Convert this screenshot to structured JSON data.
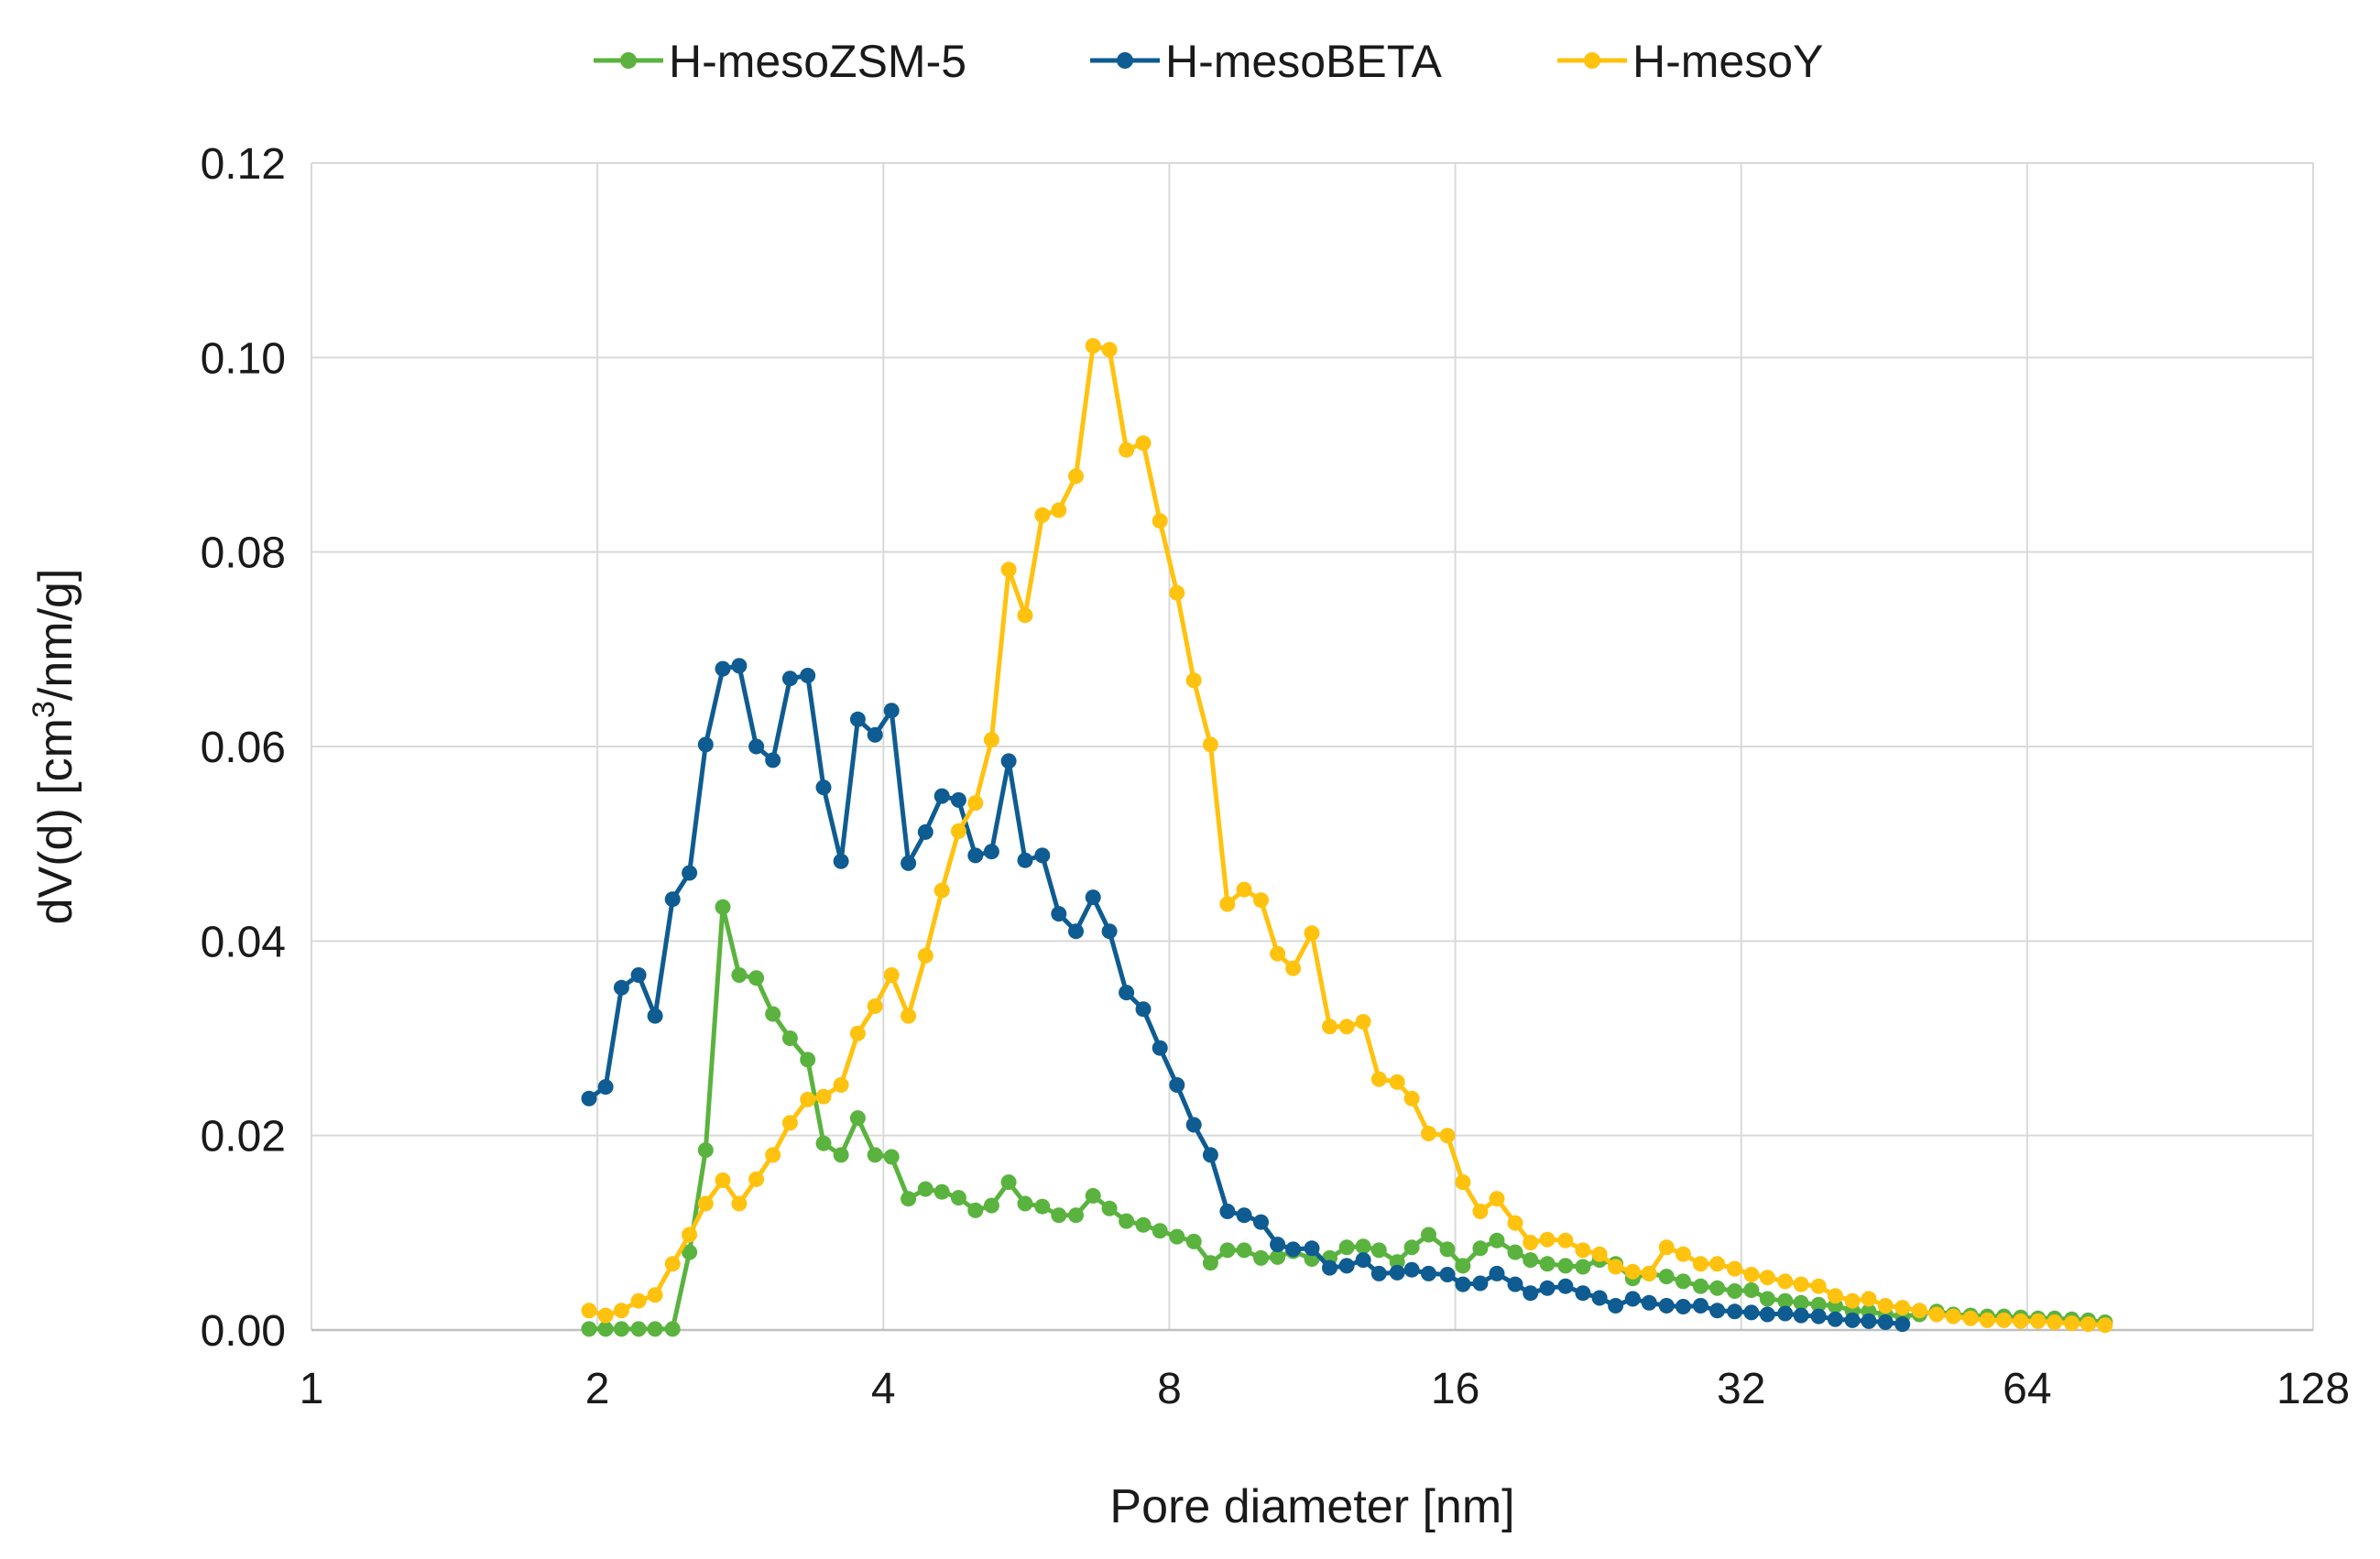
{
  "chart_data": {
    "type": "line",
    "title": "",
    "xlabel": "Pore diameter [nm]",
    "ylabel_main": "dV(d) [cm",
    "ylabel_sup": "3",
    "ylabel_tail": "/nm/g]",
    "xscale": "log2",
    "xlim": [
      1,
      128
    ],
    "ylim": [
      0,
      0.12
    ],
    "xticks": [
      1,
      2,
      4,
      8,
      16,
      32,
      64,
      128
    ],
    "xtick_labels": [
      "1",
      "2",
      "4",
      "8",
      "16",
      "32",
      "64",
      "128"
    ],
    "yticks": [
      0,
      0.02,
      0.04,
      0.06,
      0.08,
      0.1,
      0.12
    ],
    "ytick_labels": [
      "0.00",
      "0.02",
      "0.04",
      "0.06",
      "0.08",
      "0.10",
      "0.12"
    ],
    "grid": true,
    "legend_position": "top-center",
    "series": [
      {
        "name": "H-mesoZSM-5",
        "color": "#5AB33E",
        "x": [
          1.96,
          2.04,
          2.12,
          2.21,
          2.3,
          2.4,
          2.5,
          2.6,
          2.71,
          2.82,
          2.94,
          3.06,
          3.19,
          3.33,
          3.46,
          3.61,
          3.76,
          3.92,
          4.08,
          4.25,
          4.43,
          4.61,
          4.8,
          5.0,
          5.2,
          5.42,
          5.64,
          5.88,
          6.12,
          6.38,
          6.65,
          6.92,
          7.21,
          7.51,
          7.82,
          8.15,
          8.49,
          8.84,
          9.21,
          9.59,
          9.99,
          10.4,
          10.8,
          11.3,
          11.8,
          12.3,
          12.8,
          13.3,
          13.9,
          14.4,
          15.0,
          15.7,
          16.3,
          17.0,
          17.7,
          18.5,
          19.2,
          20.0,
          20.9,
          21.8,
          22.7,
          23.6,
          24.6,
          25.6,
          26.7,
          27.8,
          29.0,
          30.2,
          31.5,
          32.8,
          34.1,
          35.6,
          37.0,
          38.6,
          40.2,
          41.9,
          43.6,
          45.4,
          47.3,
          49.3,
          51.4,
          53.5,
          55.8,
          58.1,
          60.5,
          63.0,
          65.7,
          68.4,
          71.3,
          74.2,
          77.3
        ],
        "y": [
          0.0001,
          0.0001,
          0.0001,
          0.0001,
          0.0001,
          0.0001,
          0.008,
          0.0185,
          0.0435,
          0.0365,
          0.0362,
          0.0325,
          0.03,
          0.0278,
          0.0192,
          0.018,
          0.0218,
          0.018,
          0.0178,
          0.0135,
          0.0145,
          0.0142,
          0.0136,
          0.0123,
          0.0128,
          0.0152,
          0.013,
          0.0127,
          0.0118,
          0.0118,
          0.0138,
          0.0125,
          0.0112,
          0.0108,
          0.0102,
          0.0096,
          0.0091,
          0.0069,
          0.0082,
          0.0082,
          0.0074,
          0.0075,
          0.0081,
          0.0073,
          0.0074,
          0.0085,
          0.0086,
          0.0082,
          0.007,
          0.0085,
          0.0098,
          0.0083,
          0.0066,
          0.0084,
          0.0092,
          0.008,
          0.0072,
          0.0068,
          0.0066,
          0.0065,
          0.0072,
          0.0068,
          0.0053,
          0.0058,
          0.0055,
          0.005,
          0.0045,
          0.0043,
          0.004,
          0.0041,
          0.0032,
          0.003,
          0.0028,
          0.0026,
          0.0025,
          0.002,
          0.0019,
          0.0016,
          0.0014,
          0.0016,
          0.0019,
          0.0016,
          0.0015,
          0.0014,
          0.0014,
          0.0013,
          0.0012,
          0.0012,
          0.0011,
          0.001,
          0.0008
        ]
      },
      {
        "name": "H-mesoBETA",
        "color": "#0E5C91",
        "x": [
          1.96,
          2.04,
          2.12,
          2.21,
          2.3,
          2.4,
          2.5,
          2.6,
          2.71,
          2.82,
          2.94,
          3.06,
          3.19,
          3.33,
          3.46,
          3.61,
          3.76,
          3.92,
          4.08,
          4.25,
          4.43,
          4.61,
          4.8,
          5.0,
          5.2,
          5.42,
          5.64,
          5.88,
          6.12,
          6.38,
          6.65,
          6.92,
          7.21,
          7.51,
          7.82,
          8.15,
          8.49,
          8.84,
          9.21,
          9.59,
          9.99,
          10.4,
          10.8,
          11.3,
          11.8,
          12.3,
          12.8,
          13.3,
          13.9,
          14.4,
          15.0,
          15.7,
          16.3,
          17.0,
          17.7,
          18.5,
          19.2,
          20.0,
          20.9,
          21.8,
          22.7,
          23.6,
          24.6,
          25.6,
          26.7,
          27.8,
          29.0,
          30.2,
          31.5,
          32.8,
          34.1,
          35.6,
          37.0,
          38.6,
          40.2,
          41.9,
          43.6,
          45.4,
          47.3
        ],
        "y": [
          0.0238,
          0.025,
          0.0352,
          0.0365,
          0.0323,
          0.0443,
          0.047,
          0.0602,
          0.068,
          0.0683,
          0.06,
          0.0586,
          0.067,
          0.0673,
          0.0558,
          0.0482,
          0.0628,
          0.0612,
          0.0637,
          0.048,
          0.0512,
          0.0549,
          0.0545,
          0.0488,
          0.0492,
          0.0585,
          0.0483,
          0.0488,
          0.0428,
          0.041,
          0.0445,
          0.041,
          0.0347,
          0.033,
          0.029,
          0.0252,
          0.0211,
          0.018,
          0.0122,
          0.0118,
          0.0111,
          0.0088,
          0.0083,
          0.0084,
          0.0064,
          0.0066,
          0.0072,
          0.0058,
          0.0059,
          0.0062,
          0.0058,
          0.0057,
          0.0047,
          0.0048,
          0.0058,
          0.0047,
          0.0038,
          0.0043,
          0.0045,
          0.0038,
          0.0033,
          0.0025,
          0.0032,
          0.0028,
          0.0025,
          0.0024,
          0.0025,
          0.002,
          0.0019,
          0.0018,
          0.0016,
          0.0017,
          0.0015,
          0.0014,
          0.0011,
          0.001,
          0.0009,
          0.0008,
          0.0006
        ]
      },
      {
        "name": "H-mesoY",
        "color": "#FFC20E",
        "x": [
          1.96,
          2.04,
          2.12,
          2.21,
          2.3,
          2.4,
          2.5,
          2.6,
          2.71,
          2.82,
          2.94,
          3.06,
          3.19,
          3.33,
          3.46,
          3.61,
          3.76,
          3.92,
          4.08,
          4.25,
          4.43,
          4.61,
          4.8,
          5.0,
          5.2,
          5.42,
          5.64,
          5.88,
          6.12,
          6.38,
          6.65,
          6.92,
          7.21,
          7.51,
          7.82,
          8.15,
          8.49,
          8.84,
          9.21,
          9.59,
          9.99,
          10.4,
          10.8,
          11.3,
          11.8,
          12.3,
          12.8,
          13.3,
          13.9,
          14.4,
          15.0,
          15.7,
          16.3,
          17.0,
          17.7,
          18.5,
          19.2,
          20.0,
          20.9,
          21.8,
          22.7,
          23.6,
          24.6,
          25.6,
          26.7,
          27.8,
          29.0,
          30.2,
          31.5,
          32.8,
          34.1,
          35.6,
          37.0,
          38.6,
          40.2,
          41.9,
          43.6,
          45.4,
          47.3,
          49.3,
          51.4,
          53.5,
          55.8,
          58.1,
          60.5,
          63.0,
          65.7,
          68.4,
          71.3,
          74.2,
          77.3
        ],
        "y": [
          0.002,
          0.0015,
          0.002,
          0.003,
          0.0036,
          0.0068,
          0.0098,
          0.013,
          0.0154,
          0.013,
          0.0155,
          0.018,
          0.0213,
          0.0237,
          0.024,
          0.0252,
          0.0305,
          0.0333,
          0.0365,
          0.0323,
          0.0385,
          0.0452,
          0.0513,
          0.0542,
          0.0607,
          0.0782,
          0.0735,
          0.0838,
          0.0843,
          0.0878,
          0.1012,
          0.1008,
          0.0905,
          0.0912,
          0.0832,
          0.0758,
          0.0668,
          0.0602,
          0.0438,
          0.0453,
          0.0442,
          0.0387,
          0.0372,
          0.0408,
          0.0312,
          0.0312,
          0.0317,
          0.0258,
          0.0255,
          0.0238,
          0.0202,
          0.02,
          0.0152,
          0.0122,
          0.0135,
          0.011,
          0.009,
          0.0093,
          0.0092,
          0.0082,
          0.0078,
          0.0065,
          0.006,
          0.0058,
          0.0085,
          0.0078,
          0.0068,
          0.0068,
          0.0063,
          0.0057,
          0.0054,
          0.005,
          0.0047,
          0.0045,
          0.0035,
          0.003,
          0.0032,
          0.0025,
          0.0023,
          0.002,
          0.0016,
          0.0014,
          0.0012,
          0.001,
          0.001,
          0.0009,
          0.0009,
          0.0008,
          0.0007,
          0.0006,
          0.0005
        ]
      }
    ]
  }
}
